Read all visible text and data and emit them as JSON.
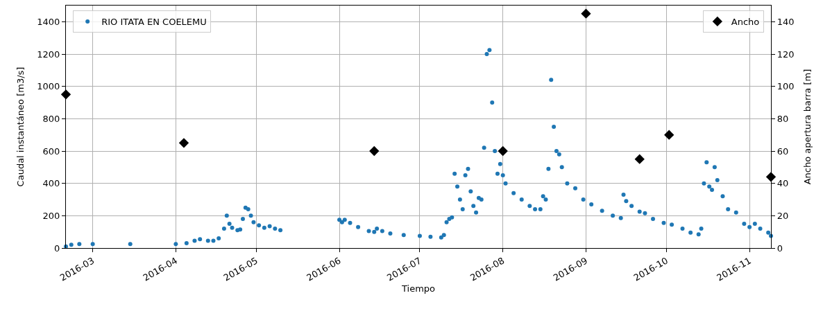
{
  "chart_data": {
    "type": "scatter",
    "xlabel": "Tiempo",
    "ylabel": "Caudal instantáneo [m3/s]",
    "y2label": "Ancho apertura barra [m]",
    "xlim": [
      "2016-02-20",
      "2016-11-09"
    ],
    "xticks": [
      "2016-03",
      "2016-04",
      "2016-05",
      "2016-06",
      "2016-07",
      "2016-08",
      "2016-09",
      "2016-10",
      "2016-11"
    ],
    "ylim": [
      0,
      1500
    ],
    "yticks": [
      0,
      200,
      400,
      600,
      800,
      1000,
      1200,
      1400
    ],
    "y2lim": [
      0,
      150
    ],
    "y2ticks": [
      0,
      20,
      40,
      60,
      80,
      100,
      120,
      140
    ],
    "grid": true,
    "legend": "top",
    "series": [
      {
        "name": "RIO ITATA EN COELEMU",
        "color": "#1f77b4",
        "marker": "circle",
        "x": [
          "2016-02-20",
          "2016-02-22",
          "2016-02-25",
          "2016-03-01",
          "2016-03-15",
          "2016-04-01",
          "2016-04-05",
          "2016-04-08",
          "2016-04-10",
          "2016-04-13",
          "2016-04-15",
          "2016-04-17",
          "2016-04-19",
          "2016-04-20",
          "2016-04-21",
          "2016-04-22",
          "2016-04-24",
          "2016-04-25",
          "2016-04-26",
          "2016-04-27",
          "2016-04-28",
          "2016-04-29",
          "2016-04-30",
          "2016-05-02",
          "2016-05-04",
          "2016-05-06",
          "2016-05-08",
          "2016-05-10",
          "2016-06-01",
          "2016-06-02",
          "2016-06-03",
          "2016-06-05",
          "2016-06-08",
          "2016-06-12",
          "2016-06-14",
          "2016-06-15",
          "2016-06-17",
          "2016-06-20",
          "2016-06-25",
          "2016-07-01",
          "2016-07-05",
          "2016-07-09",
          "2016-07-10",
          "2016-07-11",
          "2016-07-12",
          "2016-07-13",
          "2016-07-14",
          "2016-07-15",
          "2016-07-16",
          "2016-07-17",
          "2016-07-18",
          "2016-07-19",
          "2016-07-20",
          "2016-07-21",
          "2016-07-22",
          "2016-07-23",
          "2016-07-24",
          "2016-07-25",
          "2016-07-26",
          "2016-07-27",
          "2016-07-28",
          "2016-07-29",
          "2016-07-30",
          "2016-07-31",
          "2016-08-01",
          "2016-08-02",
          "2016-08-05",
          "2016-08-08",
          "2016-08-11",
          "2016-08-13",
          "2016-08-15",
          "2016-08-16",
          "2016-08-17",
          "2016-08-18",
          "2016-08-19",
          "2016-08-20",
          "2016-08-21",
          "2016-08-22",
          "2016-08-23",
          "2016-08-25",
          "2016-08-28",
          "2016-08-31",
          "2016-09-03",
          "2016-09-07",
          "2016-09-11",
          "2016-09-14",
          "2016-09-15",
          "2016-09-16",
          "2016-09-18",
          "2016-09-21",
          "2016-09-23",
          "2016-09-26",
          "2016-09-30",
          "2016-10-03",
          "2016-10-07",
          "2016-10-10",
          "2016-10-13",
          "2016-10-14",
          "2016-10-15",
          "2016-10-16",
          "2016-10-17",
          "2016-10-18",
          "2016-10-19",
          "2016-10-20",
          "2016-10-22",
          "2016-10-24",
          "2016-10-27",
          "2016-10-30",
          "2016-11-01",
          "2016-11-03",
          "2016-11-05",
          "2016-11-08",
          "2016-11-09"
        ],
        "values": [
          10,
          20,
          25,
          25,
          25,
          25,
          30,
          45,
          55,
          45,
          45,
          60,
          120,
          200,
          150,
          125,
          110,
          115,
          180,
          250,
          240,
          200,
          160,
          140,
          125,
          135,
          120,
          110,
          175,
          160,
          175,
          155,
          130,
          105,
          100,
          120,
          105,
          90,
          80,
          75,
          70,
          65,
          80,
          160,
          180,
          190,
          460,
          380,
          300,
          240,
          450,
          490,
          350,
          260,
          220,
          310,
          300,
          620,
          1200,
          1225,
          900,
          600,
          460,
          520,
          450,
          400,
          340,
          300,
          260,
          240,
          240,
          320,
          300,
          490,
          1040,
          750,
          600,
          580,
          500,
          400,
          370,
          300,
          270,
          230,
          200,
          185,
          330,
          290,
          260,
          225,
          215,
          180,
          155,
          145,
          120,
          95,
          85,
          120,
          400,
          530,
          380,
          360,
          500,
          420,
          320,
          240,
          220,
          150,
          130,
          150,
          120,
          95,
          75
        ]
      },
      {
        "name": "Ancho",
        "color": "#000000",
        "marker": "diamond",
        "axis": "y2",
        "x": [
          "2016-02-20",
          "2016-04-04",
          "2016-06-14",
          "2016-08-01",
          "2016-09-01",
          "2016-09-21",
          "2016-10-02",
          "2016-11-09"
        ],
        "values": [
          95,
          65,
          60,
          60,
          145,
          55,
          70,
          44
        ]
      }
    ]
  }
}
